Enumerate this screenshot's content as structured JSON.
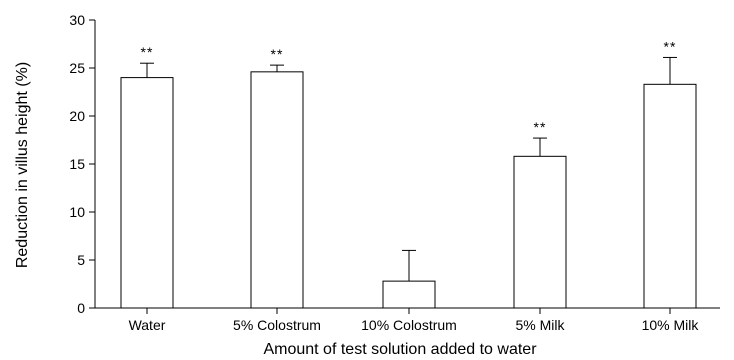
{
  "chart_data": {
    "type": "bar",
    "title": "",
    "xlabel": "Amount of test solution added to water",
    "ylabel": "Reduction in villus height (%)",
    "ylim": [
      0,
      30
    ],
    "yticks": [
      0,
      5,
      10,
      15,
      20,
      25,
      30
    ],
    "categories": [
      "Water",
      "5% Colostrum",
      "10% Colostrum",
      "5% Milk",
      "10% Milk"
    ],
    "values": [
      24.0,
      24.6,
      2.8,
      15.8,
      23.3
    ],
    "error_upper": [
      1.5,
      0.7,
      3.2,
      1.9,
      2.8
    ],
    "significance": [
      "**",
      "**",
      "",
      "**",
      "**"
    ],
    "grid": false,
    "colors": {
      "bar_fill": "#ffffff",
      "bar_stroke": "#000000"
    }
  }
}
